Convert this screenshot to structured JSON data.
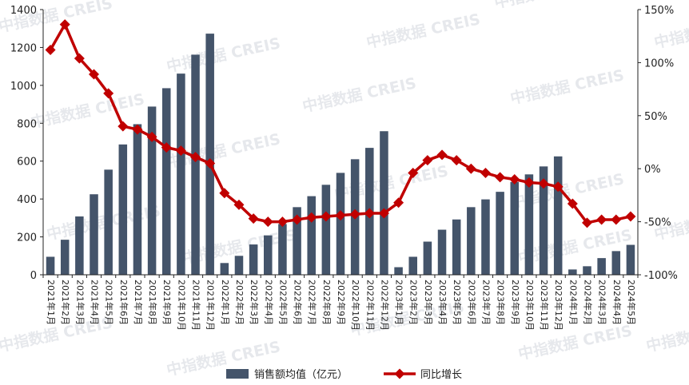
{
  "watermark": "中指数据 CREIS",
  "colors": {
    "bar": "#44546a",
    "line": "#c00000",
    "axis": "#222222"
  },
  "chart_data": {
    "type": "bar",
    "categories": [
      "2021年1月",
      "2021年2月",
      "2021年3月",
      "2021年4月",
      "2021年5月",
      "2021年6月",
      "2021年7月",
      "2021年8月",
      "2021年9月",
      "2021年10月",
      "2021年11月",
      "2021年12月",
      "2022年1月",
      "2022年2月",
      "2022年3月",
      "2022年4月",
      "2022年5月",
      "2022年6月",
      "2022年7月",
      "2022年8月",
      "2022年9月",
      "2022年10月",
      "2022年11月",
      "2022年12月",
      "2023年1月",
      "2023年2月",
      "2023年3月",
      "2023年4月",
      "2023年5月",
      "2023年6月",
      "2023年7月",
      "2023年8月",
      "2023年9月",
      "2023年10月",
      "2023年11月",
      "2023年12月",
      "2024年1月",
      "2024年2月",
      "2024年3月",
      "2024年4月",
      "2024年5月"
    ],
    "series": [
      {
        "name": "销售额均值（亿元）",
        "type": "bar",
        "axis": "left",
        "values": [
          95,
          185,
          308,
          425,
          555,
          688,
          795,
          888,
          985,
          1062,
          1162,
          1273,
          62,
          100,
          160,
          208,
          268,
          357,
          415,
          475,
          538,
          610,
          670,
          758,
          40,
          95,
          175,
          238,
          292,
          357,
          398,
          438,
          490,
          530,
          572,
          625,
          28,
          45,
          88,
          125,
          158
        ]
      },
      {
        "name": "同比增长",
        "type": "line",
        "axis": "right",
        "values": [
          112,
          136,
          104,
          89,
          71,
          40,
          37,
          30,
          20,
          17,
          11,
          5,
          -23,
          -34,
          -47,
          -50,
          -50,
          -48,
          -46,
          -45,
          -44,
          -43,
          -42,
          -42,
          -32,
          -4,
          8,
          13,
          8,
          0,
          -4,
          -8,
          -10,
          -13,
          -14,
          -17,
          -33,
          -51,
          -48,
          -48,
          -45
        ]
      }
    ],
    "y_left": {
      "min": 0,
      "max": 1400,
      "ticks": [
        0,
        200,
        400,
        600,
        800,
        1000,
        1200,
        1400
      ]
    },
    "y_right": {
      "min": -100,
      "max": 150,
      "ticks": [
        "-100%",
        "-50%",
        "0%",
        "50%",
        "100%",
        "150%"
      ]
    },
    "legend": [
      "销售额均值（亿元）",
      "同比增长"
    ]
  }
}
